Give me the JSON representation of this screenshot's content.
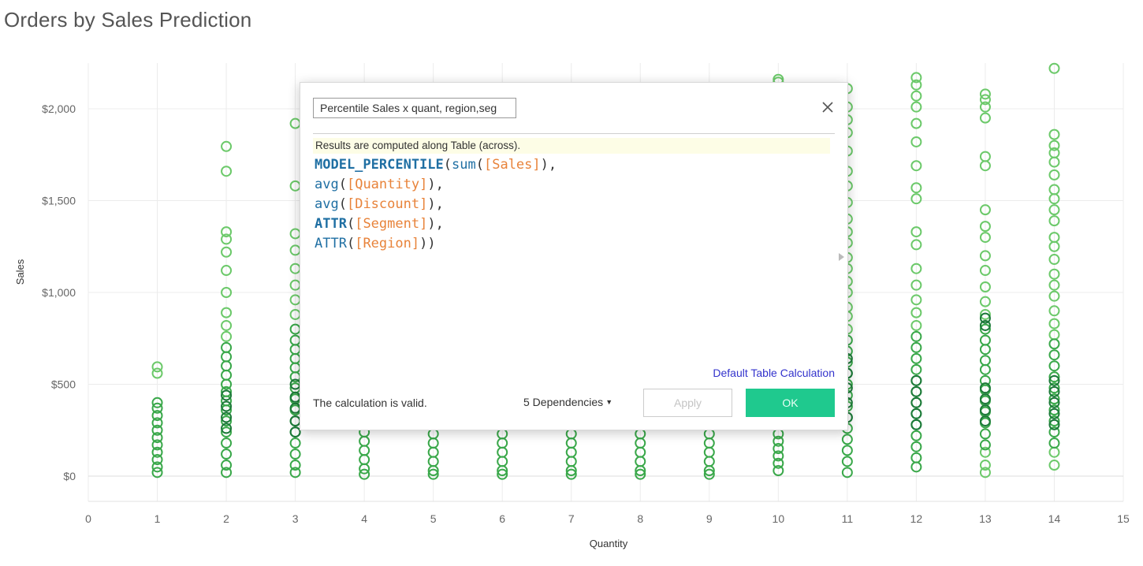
{
  "colors": {
    "light_green": "#6cc96a",
    "mid_green": "#3aa84a",
    "dark_green": "#1d7a3a",
    "accent_ok": "#1fc98e",
    "link": "#3333cc"
  },
  "chart_data": {
    "type": "scatter",
    "title": "Orders by Sales Prediction",
    "xlabel": "Quantity",
    "ylabel": "Sales",
    "xlim": [
      0,
      15
    ],
    "ylim": [
      0,
      2250
    ],
    "x_ticks": [
      0,
      1,
      2,
      3,
      4,
      5,
      6,
      7,
      8,
      9,
      10,
      11,
      12,
      13,
      14,
      15
    ],
    "y_ticks": [
      0,
      500,
      1000,
      1500,
      2000
    ],
    "y_tick_labels": [
      "$0",
      "$500",
      "$1,000",
      "$1,500",
      "$2,000"
    ],
    "grid": true,
    "marker": "hollow-circle",
    "series": [
      {
        "color": "#6cc96a",
        "points": [
          [
            1,
            595
          ],
          [
            1,
            560
          ],
          [
            2,
            1795
          ],
          [
            2,
            1660
          ],
          [
            2,
            1330
          ],
          [
            2,
            1290
          ],
          [
            2,
            1220
          ],
          [
            2,
            1120
          ],
          [
            2,
            1000
          ],
          [
            2,
            890
          ],
          [
            2,
            820
          ],
          [
            2,
            760
          ],
          [
            3,
            1920
          ],
          [
            3,
            1580
          ],
          [
            3,
            1320
          ],
          [
            3,
            1230
          ],
          [
            3,
            1130
          ],
          [
            3,
            1040
          ],
          [
            3,
            960
          ],
          [
            3,
            880
          ],
          [
            10,
            2160
          ],
          [
            10,
            2145
          ],
          [
            11,
            2110
          ],
          [
            11,
            2010
          ],
          [
            11,
            1940
          ],
          [
            11,
            1870
          ],
          [
            11,
            1770
          ],
          [
            11,
            1660
          ],
          [
            11,
            1580
          ],
          [
            11,
            1490
          ],
          [
            11,
            1400
          ],
          [
            11,
            1330
          ],
          [
            11,
            1270
          ],
          [
            11,
            1190
          ],
          [
            11,
            1130
          ],
          [
            11,
            1060
          ],
          [
            11,
            1000
          ],
          [
            11,
            920
          ],
          [
            11,
            870
          ],
          [
            11,
            800
          ],
          [
            12,
            2170
          ],
          [
            12,
            2130
          ],
          [
            12,
            2070
          ],
          [
            12,
            2010
          ],
          [
            12,
            1920
          ],
          [
            12,
            1820
          ],
          [
            12,
            1690
          ],
          [
            12,
            1570
          ],
          [
            12,
            1510
          ],
          [
            12,
            1330
          ],
          [
            12,
            1260
          ],
          [
            12,
            1130
          ],
          [
            12,
            1040
          ],
          [
            12,
            960
          ],
          [
            12,
            890
          ],
          [
            12,
            820
          ],
          [
            13,
            2080
          ],
          [
            13,
            2050
          ],
          [
            13,
            2010
          ],
          [
            13,
            1950
          ],
          [
            13,
            1740
          ],
          [
            13,
            1690
          ],
          [
            13,
            1450
          ],
          [
            13,
            1360
          ],
          [
            13,
            1300
          ],
          [
            13,
            1200
          ],
          [
            13,
            1120
          ],
          [
            13,
            1030
          ],
          [
            13,
            950
          ],
          [
            13,
            880
          ],
          [
            13,
            130
          ],
          [
            13,
            60
          ],
          [
            13,
            20
          ],
          [
            14,
            2220
          ],
          [
            14,
            1860
          ],
          [
            14,
            1800
          ],
          [
            14,
            1760
          ],
          [
            14,
            1710
          ],
          [
            14,
            1640
          ],
          [
            14,
            1560
          ],
          [
            14,
            1510
          ],
          [
            14,
            1450
          ],
          [
            14,
            1390
          ],
          [
            14,
            1300
          ],
          [
            14,
            1250
          ],
          [
            14,
            1180
          ],
          [
            14,
            1100
          ],
          [
            14,
            1040
          ],
          [
            14,
            980
          ],
          [
            14,
            900
          ],
          [
            14,
            830
          ],
          [
            14,
            770
          ],
          [
            14,
            130
          ],
          [
            14,
            60
          ]
        ]
      },
      {
        "color": "#3aa84a",
        "points": [
          [
            1,
            400
          ],
          [
            1,
            370
          ],
          [
            1,
            330
          ],
          [
            1,
            290
          ],
          [
            1,
            250
          ],
          [
            1,
            210
          ],
          [
            1,
            170
          ],
          [
            1,
            130
          ],
          [
            1,
            90
          ],
          [
            1,
            50
          ],
          [
            1,
            20
          ],
          [
            2,
            700
          ],
          [
            2,
            650
          ],
          [
            2,
            600
          ],
          [
            2,
            550
          ],
          [
            2,
            500
          ],
          [
            2,
            460
          ],
          [
            2,
            410
          ],
          [
            2,
            360
          ],
          [
            2,
            300
          ],
          [
            2,
            240
          ],
          [
            2,
            180
          ],
          [
            2,
            120
          ],
          [
            2,
            60
          ],
          [
            2,
            20
          ],
          [
            3,
            800
          ],
          [
            3,
            740
          ],
          [
            3,
            690
          ],
          [
            3,
            640
          ],
          [
            3,
            590
          ],
          [
            3,
            540
          ],
          [
            3,
            480
          ],
          [
            3,
            420
          ],
          [
            3,
            360
          ],
          [
            3,
            300
          ],
          [
            3,
            240
          ],
          [
            3,
            180
          ],
          [
            3,
            120
          ],
          [
            3,
            60
          ],
          [
            3,
            20
          ],
          [
            4,
            240
          ],
          [
            4,
            190
          ],
          [
            4,
            140
          ],
          [
            4,
            90
          ],
          [
            4,
            40
          ],
          [
            4,
            10
          ],
          [
            5,
            230
          ],
          [
            5,
            180
          ],
          [
            5,
            130
          ],
          [
            5,
            80
          ],
          [
            5,
            30
          ],
          [
            5,
            10
          ],
          [
            6,
            230
          ],
          [
            6,
            180
          ],
          [
            6,
            130
          ],
          [
            6,
            80
          ],
          [
            6,
            30
          ],
          [
            6,
            10
          ],
          [
            7,
            230
          ],
          [
            7,
            180
          ],
          [
            7,
            130
          ],
          [
            7,
            80
          ],
          [
            7,
            30
          ],
          [
            7,
            10
          ],
          [
            8,
            230
          ],
          [
            8,
            180
          ],
          [
            8,
            130
          ],
          [
            8,
            80
          ],
          [
            8,
            30
          ],
          [
            8,
            10
          ],
          [
            9,
            230
          ],
          [
            9,
            180
          ],
          [
            9,
            130
          ],
          [
            9,
            80
          ],
          [
            9,
            30
          ],
          [
            9,
            10
          ],
          [
            10,
            230
          ],
          [
            10,
            190
          ],
          [
            10,
            150
          ],
          [
            10,
            110
          ],
          [
            10,
            70
          ],
          [
            10,
            30
          ],
          [
            11,
            740
          ],
          [
            11,
            680
          ],
          [
            11,
            620
          ],
          [
            11,
            560
          ],
          [
            11,
            500
          ],
          [
            11,
            440
          ],
          [
            11,
            380
          ],
          [
            11,
            320
          ],
          [
            11,
            260
          ],
          [
            11,
            200
          ],
          [
            11,
            140
          ],
          [
            11,
            80
          ],
          [
            11,
            20
          ],
          [
            12,
            760
          ],
          [
            12,
            700
          ],
          [
            12,
            640
          ],
          [
            12,
            580
          ],
          [
            12,
            520
          ],
          [
            12,
            460
          ],
          [
            12,
            400
          ],
          [
            12,
            340
          ],
          [
            12,
            280
          ],
          [
            12,
            220
          ],
          [
            12,
            160
          ],
          [
            12,
            100
          ],
          [
            12,
            50
          ],
          [
            13,
            800
          ],
          [
            13,
            740
          ],
          [
            13,
            690
          ],
          [
            13,
            630
          ],
          [
            13,
            580
          ],
          [
            13,
            520
          ],
          [
            13,
            470
          ],
          [
            13,
            410
          ],
          [
            13,
            350
          ],
          [
            13,
            290
          ],
          [
            13,
            230
          ],
          [
            13,
            170
          ],
          [
            14,
            720
          ],
          [
            14,
            660
          ],
          [
            14,
            600
          ],
          [
            14,
            540
          ],
          [
            14,
            480
          ],
          [
            14,
            420
          ],
          [
            14,
            360
          ],
          [
            14,
            300
          ],
          [
            14,
            240
          ],
          [
            14,
            180
          ]
        ]
      },
      {
        "color": "#1d7a3a",
        "points": [
          [
            2,
            440
          ],
          [
            2,
            380
          ],
          [
            2,
            320
          ],
          [
            2,
            260
          ],
          [
            3,
            500
          ],
          [
            3,
            430
          ],
          [
            3,
            370
          ],
          [
            3,
            300
          ],
          [
            3,
            240
          ],
          [
            11,
            640
          ],
          [
            11,
            560
          ],
          [
            11,
            480
          ],
          [
            11,
            400
          ],
          [
            11,
            320
          ],
          [
            12,
            520
          ],
          [
            12,
            460
          ],
          [
            12,
            400
          ],
          [
            12,
            340
          ],
          [
            12,
            280
          ],
          [
            13,
            860
          ],
          [
            13,
            820
          ],
          [
            13,
            480
          ],
          [
            13,
            420
          ],
          [
            13,
            360
          ],
          [
            13,
            300
          ],
          [
            14,
            520
          ],
          [
            14,
            460
          ],
          [
            14,
            400
          ],
          [
            14,
            340
          ],
          [
            14,
            280
          ]
        ]
      }
    ]
  },
  "dialog": {
    "calc_name": "Percentile Sales x quant, region,seg",
    "results_note": "Results are computed along Table (across).",
    "formula": {
      "line1_kw": "MODEL_PERCENTILE",
      "line1_open": "(",
      "line1_fn": "sum",
      "line1_paren": "(",
      "line1_field": "[Sales]",
      "line1_close": "),",
      "line2_fn": "avg",
      "line2_open": "(",
      "line2_field": "[Quantity]",
      "line2_close": "),",
      "line3_fn": "avg",
      "line3_open": "(",
      "line3_field": "[Discount]",
      "line3_close": "),",
      "line4_kw": "ATTR",
      "line4_open": "(",
      "line4_field": "[Segment]",
      "line4_close": "),",
      "line5_fn": "ATTR",
      "line5_open": "(",
      "line5_field": "[Region]",
      "line5_close": "))"
    },
    "default_table_calc_label": "Default Table Calculation",
    "status_text": "The calculation is valid.",
    "dependencies_label": "5 Dependencies",
    "apply_label": "Apply",
    "ok_label": "OK",
    "close_icon": "close-icon"
  }
}
